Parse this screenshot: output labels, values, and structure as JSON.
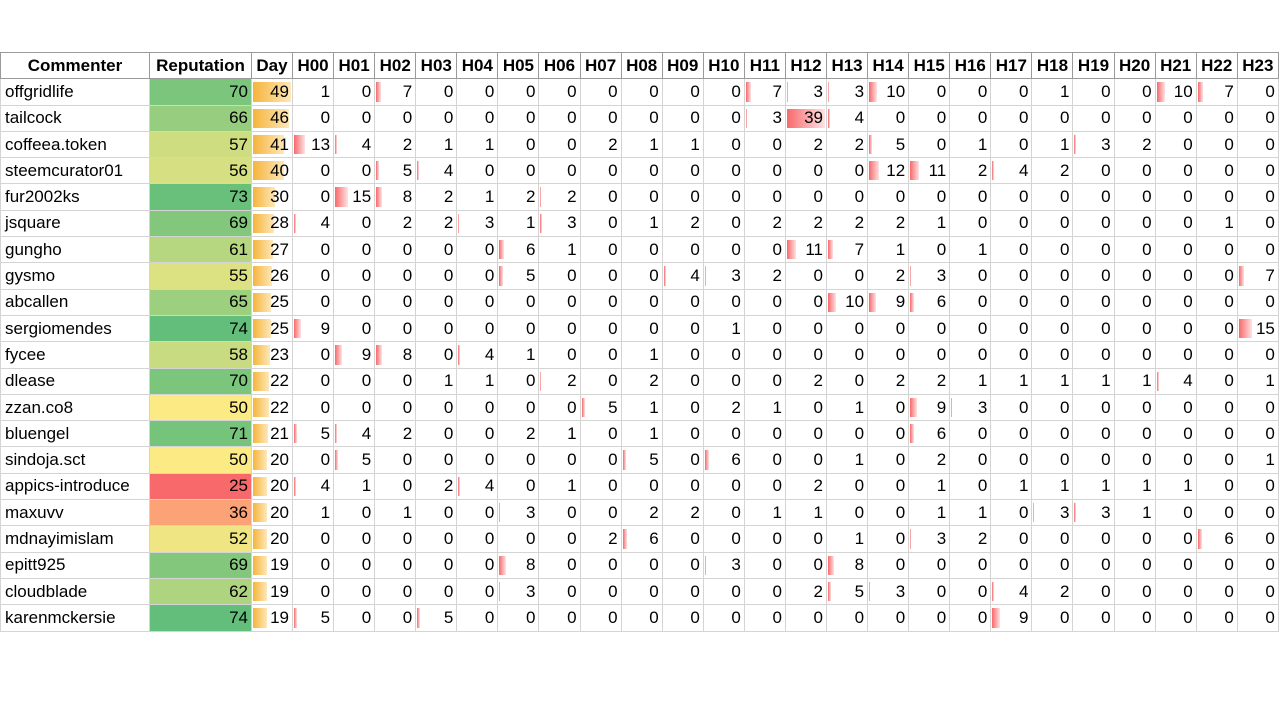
{
  "headers": [
    "Commenter",
    "Reputation",
    "Day",
    "H00",
    "H01",
    "H02",
    "H03",
    "H04",
    "H05",
    "H06",
    "H07",
    "H08",
    "H09",
    "H10",
    "H11",
    "H12",
    "H13",
    "H14",
    "H15",
    "H16",
    "H17",
    "H18",
    "H19",
    "H20",
    "H21",
    "H22",
    "H23"
  ],
  "rep_scale": {
    "min": 25,
    "max": 74,
    "colors": [
      "#f8696b",
      "#ffeb84",
      "#63be7b"
    ]
  },
  "day_scale": {
    "max": 49,
    "color": "#f6b43c"
  },
  "hour_scale": {
    "max": 39,
    "color": "#f8696b"
  },
  "rows": [
    {
      "name": "offgridlife",
      "rep": "70",
      "day": "49",
      "hours": [
        "1",
        "0",
        "7",
        "0",
        "0",
        "0",
        "0",
        "0",
        "0",
        "0",
        "0",
        "7",
        "3",
        "3",
        "10",
        "0",
        "0",
        "0",
        "1",
        "0",
        "0",
        "10",
        "7",
        "0"
      ]
    },
    {
      "name": "tailcock",
      "rep": "66",
      "day": "46",
      "hours": [
        "0",
        "0",
        "0",
        "0",
        "0",
        "0",
        "0",
        "0",
        "0",
        "0",
        "0",
        "3",
        "39",
        "4",
        "0",
        "0",
        "0",
        "0",
        "0",
        "0",
        "0",
        "0",
        "0",
        "0"
      ]
    },
    {
      "name": "coffeea.token",
      "rep": "57",
      "day": "41",
      "hours": [
        "13",
        "4",
        "2",
        "1",
        "1",
        "0",
        "0",
        "2",
        "1",
        "1",
        "0",
        "0",
        "2",
        "2",
        "5",
        "0",
        "1",
        "0",
        "1",
        "3",
        "2",
        "0",
        "0",
        "0"
      ]
    },
    {
      "name": "steemcurator01",
      "rep": "56",
      "day": "40",
      "hours": [
        "0",
        "0",
        "5",
        "4",
        "0",
        "0",
        "0",
        "0",
        "0",
        "0",
        "0",
        "0",
        "0",
        "0",
        "12",
        "11",
        "2",
        "4",
        "2",
        "0",
        "0",
        "0",
        "0",
        "0"
      ]
    },
    {
      "name": "fur2002ks",
      "rep": "73",
      "day": "30",
      "hours": [
        "0",
        "15",
        "8",
        "2",
        "1",
        "2",
        "2",
        "0",
        "0",
        "0",
        "0",
        "0",
        "0",
        "0",
        "0",
        "0",
        "0",
        "0",
        "0",
        "0",
        "0",
        "0",
        "0",
        "0"
      ]
    },
    {
      "name": "jsquare",
      "rep": "69",
      "day": "28",
      "hours": [
        "4",
        "0",
        "2",
        "2",
        "3",
        "1",
        "3",
        "0",
        "1",
        "2",
        "0",
        "2",
        "2",
        "2",
        "2",
        "1",
        "0",
        "0",
        "0",
        "0",
        "0",
        "0",
        "1",
        "0"
      ]
    },
    {
      "name": "gungho",
      "rep": "61",
      "day": "27",
      "hours": [
        "0",
        "0",
        "0",
        "0",
        "0",
        "6",
        "1",
        "0",
        "0",
        "0",
        "0",
        "0",
        "11",
        "7",
        "1",
        "0",
        "1",
        "0",
        "0",
        "0",
        "0",
        "0",
        "0",
        "0"
      ]
    },
    {
      "name": "gysmo",
      "rep": "55",
      "day": "26",
      "hours": [
        "0",
        "0",
        "0",
        "0",
        "0",
        "5",
        "0",
        "0",
        "0",
        "4",
        "3",
        "2",
        "0",
        "0",
        "2",
        "3",
        "0",
        "0",
        "0",
        "0",
        "0",
        "0",
        "0",
        "7"
      ]
    },
    {
      "name": "abcallen",
      "rep": "65",
      "day": "25",
      "hours": [
        "0",
        "0",
        "0",
        "0",
        "0",
        "0",
        "0",
        "0",
        "0",
        "0",
        "0",
        "0",
        "0",
        "10",
        "9",
        "6",
        "0",
        "0",
        "0",
        "0",
        "0",
        "0",
        "0",
        "0"
      ]
    },
    {
      "name": "sergiomendes",
      "rep": "74",
      "day": "25",
      "hours": [
        "9",
        "0",
        "0",
        "0",
        "0",
        "0",
        "0",
        "0",
        "0",
        "0",
        "1",
        "0",
        "0",
        "0",
        "0",
        "0",
        "0",
        "0",
        "0",
        "0",
        "0",
        "0",
        "0",
        "15"
      ]
    },
    {
      "name": "fycee",
      "rep": "58",
      "day": "23",
      "hours": [
        "0",
        "9",
        "8",
        "0",
        "4",
        "1",
        "0",
        "0",
        "1",
        "0",
        "0",
        "0",
        "0",
        "0",
        "0",
        "0",
        "0",
        "0",
        "0",
        "0",
        "0",
        "0",
        "0",
        "0"
      ]
    },
    {
      "name": "dlease",
      "rep": "70",
      "day": "22",
      "hours": [
        "0",
        "0",
        "0",
        "1",
        "1",
        "0",
        "2",
        "0",
        "2",
        "0",
        "0",
        "0",
        "2",
        "0",
        "2",
        "2",
        "1",
        "1",
        "1",
        "1",
        "1",
        "4",
        "0",
        "1"
      ]
    },
    {
      "name": "zzan.co8",
      "rep": "50",
      "day": "22",
      "hours": [
        "0",
        "0",
        "0",
        "0",
        "0",
        "0",
        "0",
        "5",
        "1",
        "0",
        "2",
        "1",
        "0",
        "1",
        "0",
        "9",
        "3",
        "0",
        "0",
        "0",
        "0",
        "0",
        "0",
        "0"
      ]
    },
    {
      "name": "bluengel",
      "rep": "71",
      "day": "21",
      "hours": [
        "5",
        "4",
        "2",
        "0",
        "0",
        "2",
        "1",
        "0",
        "1",
        "0",
        "0",
        "0",
        "0",
        "0",
        "0",
        "6",
        "0",
        "0",
        "0",
        "0",
        "0",
        "0",
        "0",
        "0"
      ]
    },
    {
      "name": "sindoja.sct",
      "rep": "50",
      "day": "20",
      "hours": [
        "0",
        "5",
        "0",
        "0",
        "0",
        "0",
        "0",
        "0",
        "5",
        "0",
        "6",
        "0",
        "0",
        "1",
        "0",
        "2",
        "0",
        "0",
        "0",
        "0",
        "0",
        "0",
        "0",
        "1"
      ]
    },
    {
      "name": "appics-introduce",
      "rep": "25",
      "day": "20",
      "hours": [
        "4",
        "1",
        "0",
        "2",
        "4",
        "0",
        "1",
        "0",
        "0",
        "0",
        "0",
        "0",
        "2",
        "0",
        "0",
        "1",
        "0",
        "1",
        "1",
        "1",
        "1",
        "1",
        "0",
        "0"
      ]
    },
    {
      "name": "maxuvv",
      "rep": "36",
      "day": "20",
      "hours": [
        "1",
        "0",
        "1",
        "0",
        "0",
        "3",
        "0",
        "0",
        "2",
        "2",
        "0",
        "1",
        "1",
        "0",
        "0",
        "1",
        "1",
        "0",
        "3",
        "3",
        "1",
        "0",
        "0",
        "0"
      ]
    },
    {
      "name": "mdnayimislam",
      "rep": "52",
      "day": "20",
      "hours": [
        "0",
        "0",
        "0",
        "0",
        "0",
        "0",
        "0",
        "2",
        "6",
        "0",
        "0",
        "0",
        "0",
        "1",
        "0",
        "3",
        "2",
        "0",
        "0",
        "0",
        "0",
        "0",
        "6",
        "0"
      ]
    },
    {
      "name": "epitt925",
      "rep": "69",
      "day": "19",
      "hours": [
        "0",
        "0",
        "0",
        "0",
        "0",
        "8",
        "0",
        "0",
        "0",
        "0",
        "3",
        "0",
        "0",
        "8",
        "0",
        "0",
        "0",
        "0",
        "0",
        "0",
        "0",
        "0",
        "0",
        "0"
      ]
    },
    {
      "name": "cloudblade",
      "rep": "62",
      "day": "19",
      "hours": [
        "0",
        "0",
        "0",
        "0",
        "0",
        "3",
        "0",
        "0",
        "0",
        "0",
        "0",
        "0",
        "2",
        "5",
        "3",
        "0",
        "0",
        "4",
        "2",
        "0",
        "0",
        "0",
        "0",
        "0"
      ]
    },
    {
      "name": "karenmckersie",
      "rep": "74",
      "day": "19",
      "hours": [
        "5",
        "0",
        "0",
        "5",
        "0",
        "0",
        "0",
        "0",
        "0",
        "0",
        "0",
        "0",
        "0",
        "0",
        "0",
        "0",
        "0",
        "9",
        "0",
        "0",
        "0",
        "0",
        "0",
        "0"
      ]
    }
  ]
}
